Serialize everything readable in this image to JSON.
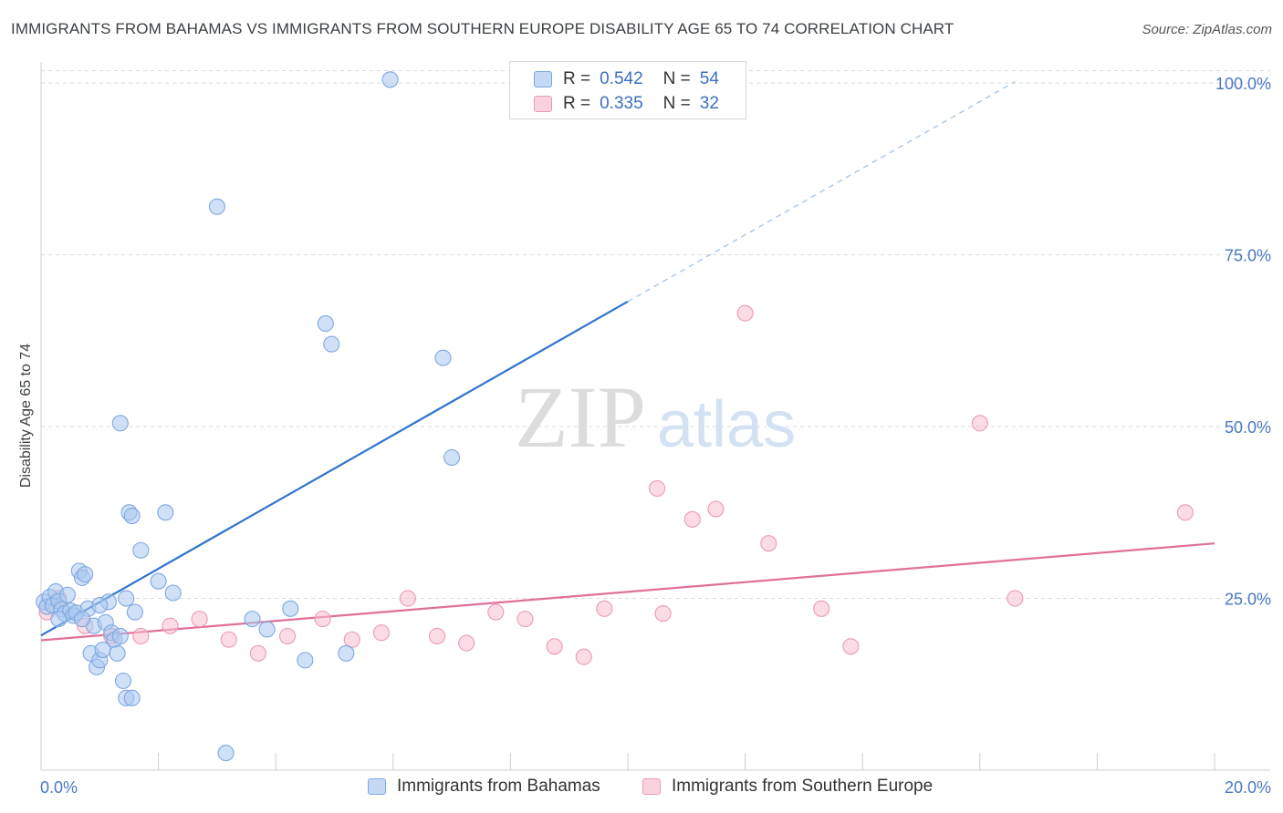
{
  "header": {
    "title": "IMMIGRANTS FROM BAHAMAS VS IMMIGRANTS FROM SOUTHERN EUROPE DISABILITY AGE 65 TO 74 CORRELATION CHART",
    "source": "Source: ZipAtlas.com"
  },
  "legend": {
    "r_label": "R =",
    "n_label": "N =",
    "rows": [
      {
        "r": "0.542",
        "n": "54"
      },
      {
        "r": "0.335",
        "n": "32"
      }
    ]
  },
  "watermark": {
    "zip": "ZIP",
    "atlas": "atlas"
  },
  "colors": {
    "blue_fill": "#aac8f0",
    "blue_stroke": "#7ea7e0",
    "blue_line": "#2f74cf",
    "pink_fill": "#f7bfd0",
    "pink_stroke": "#eb9ab3",
    "pink_line": "#e0709a",
    "grid": "#dcdcdc",
    "tick_label": "#4a78c2"
  },
  "chart_data": {
    "type": "scatter",
    "title": "IMMIGRANTS FROM BAHAMAS VS IMMIGRANTS FROM SOUTHERN EUROPE DISABILITY AGE 65 TO 74 CORRELATION CHART",
    "xlabel": "",
    "ylabel": "Disability Age 65 to 74",
    "xlim": [
      0,
      20
    ],
    "ylim": [
      0,
      102
    ],
    "x_tick_labels": [
      "0.0%",
      "20.0%"
    ],
    "y_ticks": [
      25,
      50,
      75,
      100
    ],
    "y_tick_labels": [
      "25.0%",
      "50.0%",
      "75.0%",
      "100.0%"
    ],
    "grid": true,
    "series": [
      {
        "name": "Immigrants from Bahamas",
        "color": "blue",
        "r": 0.542,
        "n": 54,
        "points": [
          [
            0.05,
            24.5
          ],
          [
            0.1,
            23.8
          ],
          [
            0.15,
            25.2
          ],
          [
            0.2,
            24.0
          ],
          [
            0.25,
            26.0
          ],
          [
            0.3,
            24.6
          ],
          [
            0.35,
            23.4
          ],
          [
            0.4,
            22.8
          ],
          [
            0.45,
            25.5
          ],
          [
            0.5,
            23.2
          ],
          [
            0.55,
            22.5
          ],
          [
            0.6,
            22.9
          ],
          [
            0.65,
            29.0
          ],
          [
            0.7,
            28.0
          ],
          [
            0.75,
            28.5
          ],
          [
            0.8,
            23.5
          ],
          [
            0.85,
            17.0
          ],
          [
            0.9,
            21.0
          ],
          [
            0.95,
            15.0
          ],
          [
            1.0,
            16.0
          ],
          [
            1.05,
            17.5
          ],
          [
            1.1,
            21.5
          ],
          [
            1.15,
            24.5
          ],
          [
            1.2,
            20.0
          ],
          [
            1.25,
            19.0
          ],
          [
            1.3,
            17.0
          ],
          [
            1.35,
            19.5
          ],
          [
            1.4,
            13.0
          ],
          [
            1.45,
            10.5
          ],
          [
            1.55,
            10.5
          ],
          [
            1.35,
            50.5
          ],
          [
            1.45,
            25.0
          ],
          [
            1.5,
            37.5
          ],
          [
            1.55,
            37.0
          ],
          [
            1.6,
            23.0
          ],
          [
            1.7,
            32.0
          ],
          [
            2.12,
            37.5
          ],
          [
            2.25,
            25.8
          ],
          [
            3.0,
            82.0
          ],
          [
            3.15,
            2.5
          ],
          [
            3.6,
            22.0
          ],
          [
            3.85,
            20.5
          ],
          [
            4.25,
            23.5
          ],
          [
            4.5,
            16.0
          ],
          [
            4.85,
            65.0
          ],
          [
            4.95,
            62.0
          ],
          [
            5.2,
            17.0
          ],
          [
            5.95,
            100.5
          ],
          [
            6.85,
            60.0
          ],
          [
            7.0,
            45.5
          ],
          [
            0.3,
            22.0
          ],
          [
            0.7,
            22.0
          ],
          [
            1.0,
            24.0
          ],
          [
            2.0,
            27.5
          ]
        ],
        "trend_solid": [
          [
            0,
            19.6
          ],
          [
            10,
            68.2
          ]
        ],
        "trend_dashed": [
          [
            10,
            68.2
          ],
          [
            16.6,
            100.2
          ]
        ]
      },
      {
        "name": "Immigrants from Southern Europe",
        "color": "pink",
        "r": 0.335,
        "n": 32,
        "points": [
          [
            0.1,
            23.0
          ],
          [
            0.3,
            25.0
          ],
          [
            0.75,
            21.0
          ],
          [
            1.2,
            19.5
          ],
          [
            1.7,
            19.5
          ],
          [
            2.2,
            21.0
          ],
          [
            2.7,
            22.0
          ],
          [
            3.2,
            19.0
          ],
          [
            3.7,
            17.0
          ],
          [
            4.2,
            19.5
          ],
          [
            4.8,
            22.0
          ],
          [
            5.3,
            19.0
          ],
          [
            5.8,
            20.0
          ],
          [
            6.25,
            25.0
          ],
          [
            6.75,
            19.5
          ],
          [
            7.25,
            18.5
          ],
          [
            7.75,
            23.0
          ],
          [
            8.25,
            22.0
          ],
          [
            8.75,
            18.0
          ],
          [
            9.25,
            16.5
          ],
          [
            9.6,
            23.5
          ],
          [
            10.5,
            41.0
          ],
          [
            10.6,
            22.8
          ],
          [
            11.1,
            36.5
          ],
          [
            11.5,
            38.0
          ],
          [
            12.0,
            66.5
          ],
          [
            12.4,
            33.0
          ],
          [
            13.3,
            23.5
          ],
          [
            13.8,
            18.0
          ],
          [
            16.0,
            50.5
          ],
          [
            16.6,
            25.0
          ],
          [
            19.5,
            37.5
          ]
        ],
        "trend_solid": [
          [
            0,
            18.9
          ],
          [
            20,
            33.0
          ]
        ]
      }
    ]
  }
}
